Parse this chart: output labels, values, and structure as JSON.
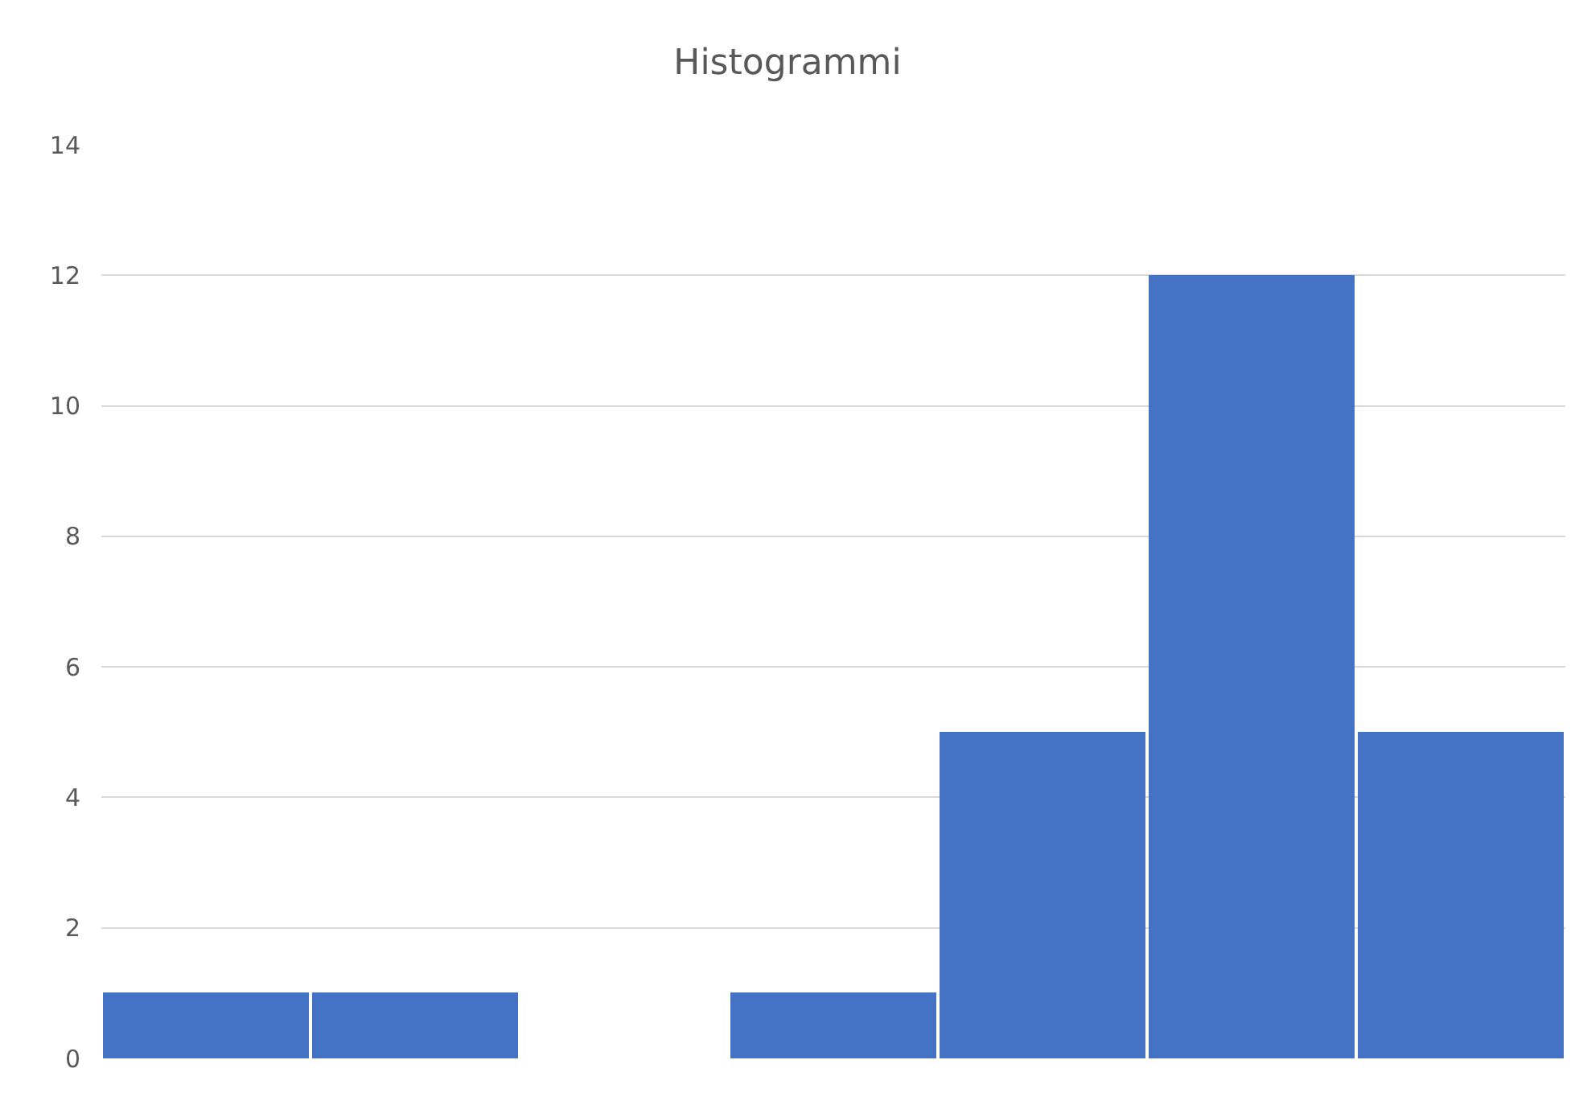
{
  "chart_data": {
    "type": "bar",
    "title": "Histogrammi",
    "categories": [
      null,
      null,
      null,
      null,
      null,
      null,
      null
    ],
    "values": [
      1,
      1,
      0,
      1,
      5,
      12,
      5
    ],
    "color": "#4472c4",
    "ylim": [
      0,
      14
    ],
    "yticks": [
      0,
      2,
      4,
      6,
      8,
      10,
      12,
      14
    ],
    "grid": "y"
  }
}
